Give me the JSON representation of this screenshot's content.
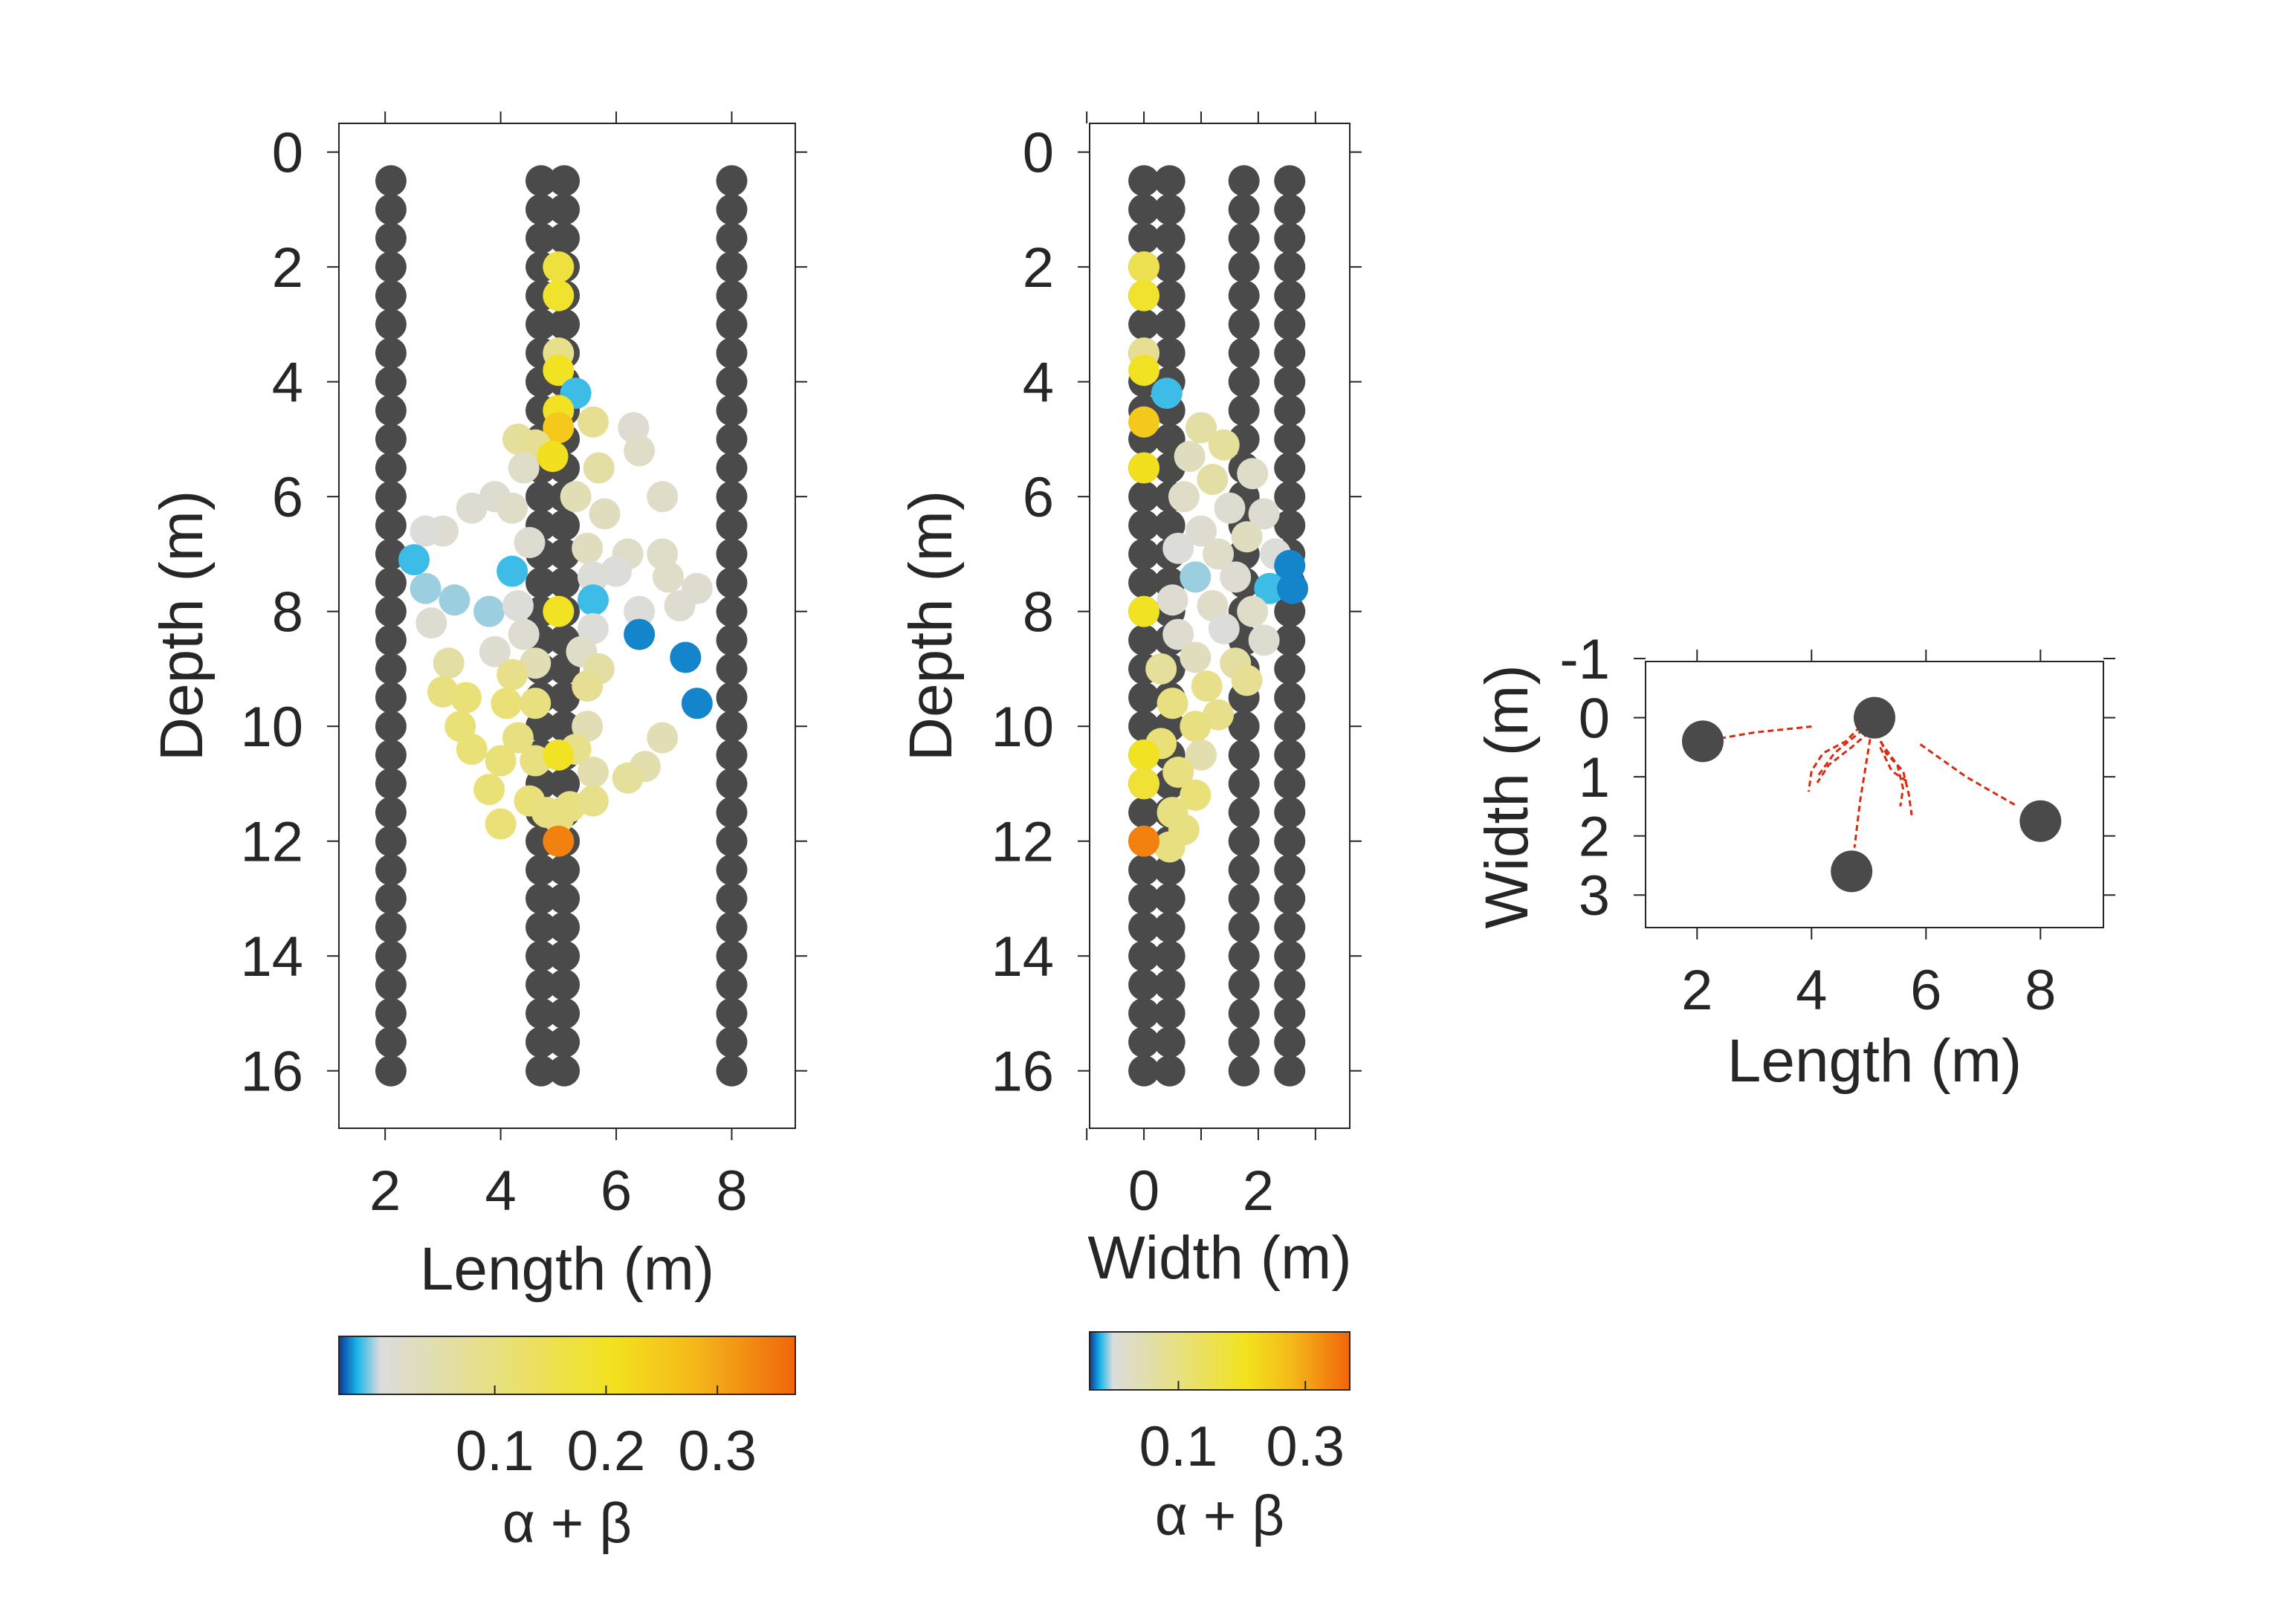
{
  "chart_data": [
    {
      "id": "length-depth",
      "type": "scatter",
      "xlabel": "Length (m)",
      "ylabel": "Depth (m)",
      "xlim": [
        1.2,
        9.1
      ],
      "ylim": [
        17.0,
        -0.5
      ],
      "y_reversed": true,
      "xticks": [
        2,
        4,
        6,
        8
      ],
      "yticks": [
        0,
        2,
        4,
        6,
        8,
        10,
        12,
        14,
        16
      ],
      "grid": false,
      "sensor_color": "#4a4a4a",
      "sensor_columns": [
        2.1,
        4.7,
        5.1,
        8.0
      ],
      "sensor_depths": {
        "from": 0.5,
        "to": 16.0,
        "step": 0.5
      },
      "events": [
        {
          "x": 5.0,
          "y": 2.0,
          "v": 0.17
        },
        {
          "x": 5.0,
          "y": 2.5,
          "v": 0.19
        },
        {
          "x": 5.0,
          "y": 3.5,
          "v": 0.09
        },
        {
          "x": 5.0,
          "y": 3.8,
          "v": 0.2
        },
        {
          "x": 5.3,
          "y": 4.2,
          "v": -0.02
        },
        {
          "x": 5.0,
          "y": 4.5,
          "v": 0.2
        },
        {
          "x": 5.0,
          "y": 4.8,
          "v": 0.25
        },
        {
          "x": 6.3,
          "y": 4.8,
          "v": 0.01
        },
        {
          "x": 4.3,
          "y": 5.0,
          "v": 0.07
        },
        {
          "x": 4.6,
          "y": 5.1,
          "v": 0.08
        },
        {
          "x": 5.6,
          "y": 4.7,
          "v": 0.08
        },
        {
          "x": 6.4,
          "y": 5.2,
          "v": 0.02
        },
        {
          "x": 4.9,
          "y": 5.3,
          "v": 0.21
        },
        {
          "x": 4.4,
          "y": 5.5,
          "v": 0.02
        },
        {
          "x": 5.7,
          "y": 5.5,
          "v": 0.06
        },
        {
          "x": 3.9,
          "y": 6.0,
          "v": 0.01
        },
        {
          "x": 4.2,
          "y": 6.2,
          "v": 0.02
        },
        {
          "x": 5.3,
          "y": 6.0,
          "v": 0.04
        },
        {
          "x": 5.8,
          "y": 6.3,
          "v": 0.03
        },
        {
          "x": 6.8,
          "y": 6.0,
          "v": 0.02
        },
        {
          "x": 3.5,
          "y": 6.2,
          "v": 0.01
        },
        {
          "x": 3.0,
          "y": 6.6,
          "v": 0.01
        },
        {
          "x": 2.7,
          "y": 6.6,
          "v": 0.0
        },
        {
          "x": 2.5,
          "y": 7.1,
          "v": -0.02
        },
        {
          "x": 4.5,
          "y": 6.8,
          "v": 0.01
        },
        {
          "x": 5.5,
          "y": 6.9,
          "v": 0.03
        },
        {
          "x": 6.2,
          "y": 7.0,
          "v": 0.02
        },
        {
          "x": 6.8,
          "y": 7.0,
          "v": 0.02
        },
        {
          "x": 4.2,
          "y": 7.3,
          "v": -0.02
        },
        {
          "x": 5.6,
          "y": 7.4,
          "v": 0.0
        },
        {
          "x": 6.0,
          "y": 7.3,
          "v": 0.0
        },
        {
          "x": 6.9,
          "y": 7.4,
          "v": 0.02
        },
        {
          "x": 7.4,
          "y": 7.6,
          "v": 0.01
        },
        {
          "x": 2.7,
          "y": 7.6,
          "v": -0.01
        },
        {
          "x": 3.2,
          "y": 7.8,
          "v": -0.01
        },
        {
          "x": 3.8,
          "y": 8.0,
          "v": -0.01
        },
        {
          "x": 4.3,
          "y": 7.9,
          "v": 0.0
        },
        {
          "x": 5.6,
          "y": 7.8,
          "v": -0.02
        },
        {
          "x": 6.4,
          "y": 8.0,
          "v": 0.0
        },
        {
          "x": 7.1,
          "y": 7.9,
          "v": 0.01
        },
        {
          "x": 5.0,
          "y": 8.0,
          "v": 0.2
        },
        {
          "x": 2.8,
          "y": 8.2,
          "v": 0.01
        },
        {
          "x": 4.4,
          "y": 8.4,
          "v": 0.01
        },
        {
          "x": 5.6,
          "y": 8.3,
          "v": 0.0
        },
        {
          "x": 6.4,
          "y": 8.4,
          "v": -0.03
        },
        {
          "x": 7.2,
          "y": 8.8,
          "v": -0.03
        },
        {
          "x": 3.9,
          "y": 8.7,
          "v": 0.01
        },
        {
          "x": 4.6,
          "y": 8.9,
          "v": 0.04
        },
        {
          "x": 5.4,
          "y": 8.7,
          "v": 0.02
        },
        {
          "x": 5.7,
          "y": 9.0,
          "v": 0.06
        },
        {
          "x": 3.1,
          "y": 8.9,
          "v": 0.06
        },
        {
          "x": 4.2,
          "y": 9.1,
          "v": 0.09
        },
        {
          "x": 5.5,
          "y": 9.3,
          "v": 0.08
        },
        {
          "x": 3.0,
          "y": 9.4,
          "v": 0.1
        },
        {
          "x": 3.4,
          "y": 9.5,
          "v": 0.11
        },
        {
          "x": 4.1,
          "y": 9.6,
          "v": 0.11
        },
        {
          "x": 4.6,
          "y": 9.6,
          "v": 0.1
        },
        {
          "x": 7.4,
          "y": 9.6,
          "v": -0.03
        },
        {
          "x": 3.3,
          "y": 10.0,
          "v": 0.11
        },
        {
          "x": 4.3,
          "y": 10.2,
          "v": 0.1
        },
        {
          "x": 5.5,
          "y": 10.0,
          "v": 0.04
        },
        {
          "x": 3.5,
          "y": 10.4,
          "v": 0.11
        },
        {
          "x": 4.0,
          "y": 10.6,
          "v": 0.11
        },
        {
          "x": 4.6,
          "y": 10.6,
          "v": 0.1
        },
        {
          "x": 5.3,
          "y": 10.4,
          "v": 0.09
        },
        {
          "x": 5.0,
          "y": 10.5,
          "v": 0.2
        },
        {
          "x": 6.8,
          "y": 10.2,
          "v": 0.04
        },
        {
          "x": 6.5,
          "y": 10.7,
          "v": 0.05
        },
        {
          "x": 6.2,
          "y": 10.9,
          "v": 0.07
        },
        {
          "x": 5.6,
          "y": 10.8,
          "v": 0.05
        },
        {
          "x": 3.8,
          "y": 11.1,
          "v": 0.11
        },
        {
          "x": 4.5,
          "y": 11.3,
          "v": 0.11
        },
        {
          "x": 5.2,
          "y": 11.4,
          "v": 0.1
        },
        {
          "x": 4.8,
          "y": 11.5,
          "v": 0.1
        },
        {
          "x": 5.6,
          "y": 11.3,
          "v": 0.09
        },
        {
          "x": 4.0,
          "y": 11.7,
          "v": 0.11
        },
        {
          "x": 5.0,
          "y": 11.6,
          "v": 0.1
        },
        {
          "x": 5.0,
          "y": 12.0,
          "v": 0.34
        }
      ]
    },
    {
      "id": "width-depth",
      "type": "scatter",
      "xlabel": "Width (m)",
      "ylabel": "Depth (m)",
      "xlim": [
        -0.95,
        3.6
      ],
      "ylim": [
        17.0,
        -0.5
      ],
      "y_reversed": true,
      "xticks": [
        0,
        2
      ],
      "minor_xticks": [
        -1,
        1,
        3
      ],
      "yticks": [
        0,
        2,
        4,
        6,
        8,
        10,
        12,
        14,
        16
      ],
      "grid": false,
      "sensor_color": "#4a4a4a",
      "sensor_columns": [
        0.0,
        0.45,
        1.75,
        2.55
      ],
      "sensor_depths": {
        "from": 0.5,
        "to": 16.0,
        "step": 0.5
      },
      "events": [
        {
          "x": 0.0,
          "y": 2.0,
          "v": 0.15
        },
        {
          "x": 0.0,
          "y": 2.5,
          "v": 0.19
        },
        {
          "x": 0.0,
          "y": 3.5,
          "v": 0.08
        },
        {
          "x": 0.0,
          "y": 3.8,
          "v": 0.2
        },
        {
          "x": 0.4,
          "y": 4.2,
          "v": -0.02
        },
        {
          "x": 0.0,
          "y": 4.7,
          "v": 0.25
        },
        {
          "x": 1.0,
          "y": 4.8,
          "v": 0.06
        },
        {
          "x": 1.4,
          "y": 5.1,
          "v": 0.07
        },
        {
          "x": 0.8,
          "y": 5.3,
          "v": 0.03
        },
        {
          "x": 1.2,
          "y": 5.7,
          "v": 0.06
        },
        {
          "x": 1.9,
          "y": 5.6,
          "v": 0.02
        },
        {
          "x": 0.0,
          "y": 5.5,
          "v": 0.21
        },
        {
          "x": 0.7,
          "y": 6.0,
          "v": 0.02
        },
        {
          "x": 1.5,
          "y": 6.2,
          "v": 0.01
        },
        {
          "x": 2.1,
          "y": 6.3,
          "v": 0.01
        },
        {
          "x": 1.0,
          "y": 6.6,
          "v": 0.01
        },
        {
          "x": 1.8,
          "y": 6.7,
          "v": 0.03
        },
        {
          "x": 0.6,
          "y": 6.9,
          "v": 0.0
        },
        {
          "x": 1.3,
          "y": 7.0,
          "v": 0.02
        },
        {
          "x": 2.3,
          "y": 7.0,
          "v": 0.0
        },
        {
          "x": 2.55,
          "y": 7.2,
          "v": -0.03
        },
        {
          "x": 0.9,
          "y": 7.4,
          "v": -0.01
        },
        {
          "x": 1.6,
          "y": 7.4,
          "v": 0.01
        },
        {
          "x": 2.2,
          "y": 7.6,
          "v": -0.02
        },
        {
          "x": 2.6,
          "y": 7.6,
          "v": -0.03
        },
        {
          "x": 0.5,
          "y": 7.8,
          "v": 0.01
        },
        {
          "x": 1.2,
          "y": 7.9,
          "v": 0.02
        },
        {
          "x": 1.9,
          "y": 8.0,
          "v": 0.02
        },
        {
          "x": 0.0,
          "y": 8.0,
          "v": 0.2
        },
        {
          "x": 0.6,
          "y": 8.4,
          "v": 0.01
        },
        {
          "x": 1.4,
          "y": 8.3,
          "v": 0.0
        },
        {
          "x": 2.1,
          "y": 8.5,
          "v": 0.01
        },
        {
          "x": 0.9,
          "y": 8.8,
          "v": 0.03
        },
        {
          "x": 1.6,
          "y": 8.9,
          "v": 0.06
        },
        {
          "x": 0.3,
          "y": 9.0,
          "v": 0.07
        },
        {
          "x": 1.1,
          "y": 9.3,
          "v": 0.09
        },
        {
          "x": 1.8,
          "y": 9.2,
          "v": 0.08
        },
        {
          "x": 0.5,
          "y": 9.6,
          "v": 0.1
        },
        {
          "x": 1.3,
          "y": 9.8,
          "v": 0.09
        },
        {
          "x": 0.9,
          "y": 10.0,
          "v": 0.1
        },
        {
          "x": 0.3,
          "y": 10.3,
          "v": 0.11
        },
        {
          "x": 1.0,
          "y": 10.5,
          "v": 0.05
        },
        {
          "x": 0.0,
          "y": 10.5,
          "v": 0.2
        },
        {
          "x": 0.6,
          "y": 10.8,
          "v": 0.1
        },
        {
          "x": 0.0,
          "y": 11.0,
          "v": 0.18
        },
        {
          "x": 0.9,
          "y": 11.2,
          "v": 0.11
        },
        {
          "x": 0.5,
          "y": 11.5,
          "v": 0.1
        },
        {
          "x": 0.7,
          "y": 11.8,
          "v": 0.1
        },
        {
          "x": 0.45,
          "y": 12.1,
          "v": 0.1
        },
        {
          "x": 0.0,
          "y": 12.0,
          "v": 0.34
        }
      ]
    },
    {
      "id": "plan-view",
      "type": "scatter",
      "xlabel": "Length (m)",
      "ylabel": "Width (m)",
      "xlim": [
        1.1,
        9.1
      ],
      "ylim": [
        3.55,
        -0.95
      ],
      "y_reversed": true,
      "xticks": [
        2,
        4,
        6,
        8
      ],
      "yticks": [
        -1,
        0,
        1,
        2,
        3
      ],
      "grid": false,
      "sensor_color": "#4a4a4a",
      "boreholes": [
        {
          "x": 2.1,
          "y": 0.4
        },
        {
          "x": 5.1,
          "y": 0.0
        },
        {
          "x": 4.7,
          "y": 2.6
        },
        {
          "x": 8.0,
          "y": 1.75
        }
      ],
      "path_color": "#d92b10",
      "paths": [
        [
          [
            2.4,
            0.35
          ],
          [
            3.0,
            0.25
          ],
          [
            4.0,
            0.15
          ]
        ],
        [
          [
            4.85,
            0.15
          ],
          [
            4.6,
            0.4
          ],
          [
            4.2,
            0.6
          ],
          [
            4.0,
            0.9
          ],
          [
            3.95,
            1.25
          ]
        ],
        [
          [
            4.9,
            0.2
          ],
          [
            4.4,
            0.6
          ],
          [
            4.1,
            1.0
          ]
        ],
        [
          [
            5.0,
            0.25
          ],
          [
            4.7,
            0.5
          ],
          [
            4.3,
            0.8
          ],
          [
            4.1,
            1.1
          ]
        ],
        [
          [
            5.05,
            0.2
          ],
          [
            4.95,
            0.8
          ],
          [
            4.85,
            1.4
          ],
          [
            4.75,
            2.2
          ]
        ],
        [
          [
            5.15,
            0.25
          ],
          [
            5.3,
            0.6
          ],
          [
            5.6,
            0.9
          ],
          [
            5.7,
            1.3
          ],
          [
            5.75,
            1.65
          ]
        ],
        [
          [
            5.2,
            0.4
          ],
          [
            5.5,
            0.8
          ],
          [
            5.6,
            1.2
          ],
          [
            5.55,
            1.5
          ]
        ],
        [
          [
            5.2,
            0.5
          ],
          [
            5.4,
            0.9
          ],
          [
            5.7,
            1.1
          ]
        ],
        [
          [
            5.9,
            0.45
          ],
          [
            6.7,
            1.0
          ],
          [
            7.6,
            1.5
          ]
        ]
      ]
    }
  ],
  "colorbars": [
    {
      "id": "colorbar-1",
      "label": "α + β",
      "range": [
        -0.04,
        0.37
      ],
      "ticks": [
        0.1,
        0.2,
        0.3
      ],
      "tick_labels": [
        "0.1",
        "0.2",
        "0.3"
      ]
    },
    {
      "id": "colorbar-2",
      "label": "α + β",
      "range": [
        -0.04,
        0.37
      ],
      "ticks": [
        0.1,
        0.3
      ],
      "tick_labels": [
        "0.1",
        "0.3"
      ]
    }
  ],
  "colormap": [
    {
      "stop": 0.0,
      "color": "#0a3a9e"
    },
    {
      "stop": 0.04,
      "color": "#1ab5e8"
    },
    {
      "stop": 0.09,
      "color": "#dcdcdc"
    },
    {
      "stop": 0.3,
      "color": "#e6df90"
    },
    {
      "stop": 0.6,
      "color": "#f2e21e"
    },
    {
      "stop": 0.78,
      "color": "#f5b81a"
    },
    {
      "stop": 1.0,
      "color": "#f0650a"
    }
  ]
}
